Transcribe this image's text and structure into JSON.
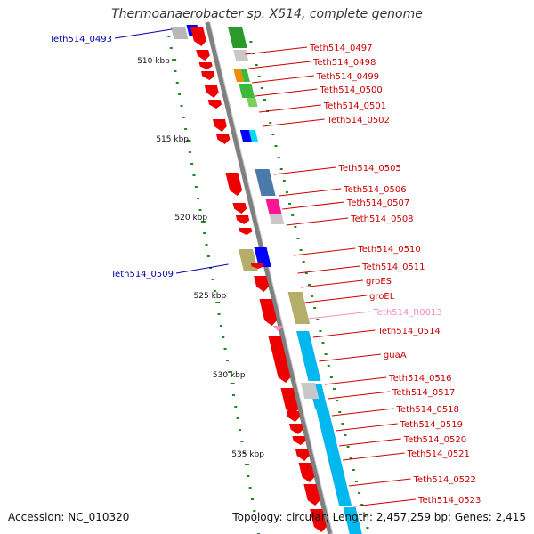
{
  "title": "Thermoanaerobacter sp. X514, complete genome",
  "footer": {
    "accession": "Accession: NC_010320",
    "summary": "Topology: circular; Length: 2,457,259 bp; Genes: 2,415"
  },
  "colors": {
    "backbone": "#808080",
    "ticks": "#1a8a1a",
    "forward_label": "#cc0000",
    "reverse_label": "#0000aa",
    "rna_label": "#f08cbf"
  },
  "scale_labels": [
    "510 kbp",
    "515 kbp",
    "520 kbp",
    "525 kbp",
    "530 kbp",
    "535 kbp"
  ],
  "gene_labels": [
    {
      "text": "Teth514_0493",
      "side": "left"
    },
    {
      "text": "Teth514_0497",
      "side": "right"
    },
    {
      "text": "Teth514_0498",
      "side": "right"
    },
    {
      "text": "Teth514_0499",
      "side": "right"
    },
    {
      "text": "Teth514_0500",
      "side": "right"
    },
    {
      "text": "Teth514_0501",
      "side": "right"
    },
    {
      "text": "Teth514_0502",
      "side": "right"
    },
    {
      "text": "Teth514_0505",
      "side": "right"
    },
    {
      "text": "Teth514_0506",
      "side": "right"
    },
    {
      "text": "Teth514_0507",
      "side": "right"
    },
    {
      "text": "Teth514_0508",
      "side": "right"
    },
    {
      "text": "Teth514_0509",
      "side": "left"
    },
    {
      "text": "Teth514_0510",
      "side": "right"
    },
    {
      "text": "Teth514_0511",
      "side": "right"
    },
    {
      "text": "groES",
      "side": "right"
    },
    {
      "text": "groEL",
      "side": "right"
    },
    {
      "text": "Teth514_R0013",
      "side": "right",
      "rna": true
    },
    {
      "text": "Teth514_0514",
      "side": "right"
    },
    {
      "text": "guaA",
      "side": "right"
    },
    {
      "text": "Teth514_0516",
      "side": "right"
    },
    {
      "text": "Teth514_0517",
      "side": "right"
    },
    {
      "text": "Teth514_0518",
      "side": "right"
    },
    {
      "text": "Teth514_0519",
      "side": "right"
    },
    {
      "text": "Teth514_0520",
      "side": "right"
    },
    {
      "text": "Teth514_0521",
      "side": "right"
    },
    {
      "text": "Teth514_0522",
      "side": "right"
    },
    {
      "text": "Teth514_0523",
      "side": "right"
    }
  ]
}
